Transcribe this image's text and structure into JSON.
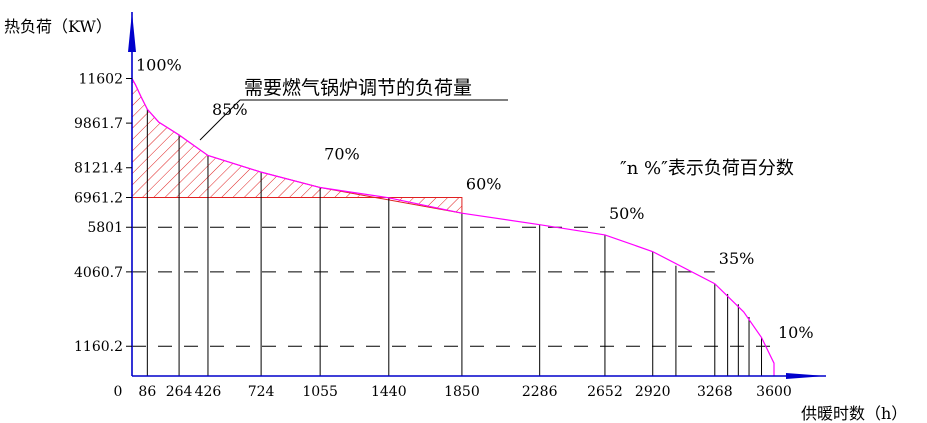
{
  "chart_data": {
    "type": "area",
    "ylabel": "热负荷（KW）",
    "xlabel": "供暖时数（h）",
    "x_ticks": [
      0,
      86,
      264,
      426,
      724,
      1055,
      1440,
      1850,
      2286,
      2652,
      2920,
      3268,
      3600
    ],
    "y_ticks": [
      {
        "value": 11602,
        "label": "11602"
      },
      {
        "value": 9861.7,
        "label": "9861.7"
      },
      {
        "value": 8121.4,
        "label": "8121.4"
      },
      {
        "value": 6961.2,
        "label": "6961.2"
      },
      {
        "value": 5801,
        "label": "5801"
      },
      {
        "value": 4060.7,
        "label": "4060.7"
      },
      {
        "value": 1160.2,
        "label": "1160.2"
      }
    ],
    "xlim": [
      0,
      3600
    ],
    "ylim": [
      0,
      14000
    ],
    "curve": {
      "x": [
        0,
        20,
        50,
        86,
        150,
        264,
        426,
        724,
        1055,
        1440,
        1850,
        2286,
        2652,
        2920,
        3268,
        3430,
        3530,
        3600,
        3600
      ],
      "y": [
        11602,
        11350,
        10900,
        10400,
        9900,
        9400,
        8600,
        7950,
        7350,
        6950,
        6350,
        5900,
        5500,
        4850,
        3600,
        2500,
        1500,
        500,
        0
      ]
    },
    "vertical_lines": [
      {
        "x": 86,
        "y": 10400
      },
      {
        "x": 264,
        "y": 9400
      },
      {
        "x": 426,
        "y": 8600
      },
      {
        "x": 724,
        "y": 7950
      },
      {
        "x": 1055,
        "y": 7350
      },
      {
        "x": 1440,
        "y": 6950
      },
      {
        "x": 1850,
        "y": 6350
      },
      {
        "x": 2286,
        "y": 5900
      },
      {
        "x": 2652,
        "y": 5500
      },
      {
        "x": 2920,
        "y": 4850
      },
      {
        "x": 3050,
        "y": 4300
      },
      {
        "x": 3268,
        "y": 3600
      },
      {
        "x": 3340,
        "y": 3200
      },
      {
        "x": 3400,
        "y": 2800
      },
      {
        "x": 3460,
        "y": 2300
      },
      {
        "x": 3530,
        "y": 1500
      }
    ],
    "dashed_levels": [
      {
        "y": 5801,
        "x_end": 2652
      },
      {
        "y": 4060.7,
        "x_end": 3268
      },
      {
        "y": 1160.2,
        "x_end": 3600
      }
    ],
    "hatched_region": {
      "y_floor": 6961.2,
      "x_end": 1850,
      "color": "#e02020"
    },
    "percent_labels": [
      {
        "text": "100%",
        "x": 0,
        "y": 11602
      },
      {
        "text": "85%",
        "x": 426,
        "y": 9861.7
      },
      {
        "text": "70%",
        "x": 1055,
        "y": 8121.4
      },
      {
        "text": "60%",
        "x": 1850,
        "y": 6961.2
      },
      {
        "text": "50%",
        "x": 2652,
        "y": 5801
      },
      {
        "text": "35%",
        "x": 3268,
        "y": 4060.7
      },
      {
        "text": "10%",
        "x": 3600,
        "y": 1160.2
      }
    ],
    "annotations": {
      "hatch_label": "需要燃气锅炉调节的负荷量",
      "legend_note": "″n %″表示负荷百分数"
    },
    "colors": {
      "curve": "#ff00ff",
      "hatch": "#e02020",
      "axis": "#0000cc",
      "lines": "#000000"
    }
  }
}
